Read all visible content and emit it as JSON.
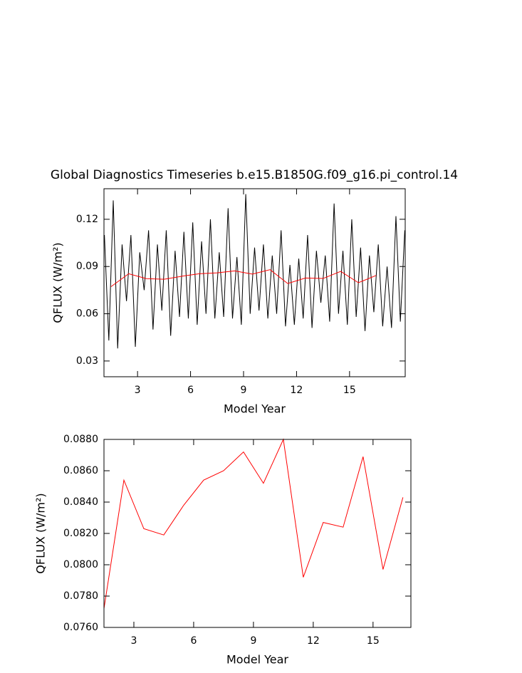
{
  "chart_data": [
    {
      "type": "line",
      "title": "Global Diagnostics Timeseries b.e15.B1850G.f09_g16.pi_control.14",
      "xlabel": "Model Year",
      "ylabel": "QFLUX (W/m²)",
      "xlim": [
        1.1,
        18.15
      ],
      "ylim": [
        0.02,
        0.1394
      ],
      "xticks": [
        3,
        6,
        9,
        12,
        15
      ],
      "yticks": [
        0.03,
        0.06,
        0.09,
        0.12
      ],
      "x": [
        1.125,
        1.375,
        1.625,
        1.875,
        2.125,
        2.375,
        2.625,
        2.875,
        3.125,
        3.375,
        3.625,
        3.875,
        4.125,
        4.375,
        4.625,
        4.875,
        5.125,
        5.375,
        5.625,
        5.875,
        6.125,
        6.375,
        6.625,
        6.875,
        7.125,
        7.375,
        7.625,
        7.875,
        8.125,
        8.375,
        8.625,
        8.875,
        9.125,
        9.375,
        9.625,
        9.875,
        10.125,
        10.375,
        10.625,
        10.875,
        11.125,
        11.375,
        11.625,
        11.875,
        12.125,
        12.375,
        12.625,
        12.875,
        13.125,
        13.375,
        13.625,
        13.875,
        14.125,
        14.375,
        14.625,
        14.875,
        15.125,
        15.375,
        15.625,
        15.875,
        16.125,
        16.375,
        16.625,
        16.875,
        17.125,
        17.375,
        17.625,
        17.875,
        18.125
      ],
      "series": [
        {
          "color": "#000000",
          "values": [
            0.11,
            0.043,
            0.132,
            0.038,
            0.104,
            0.068,
            0.11,
            0.039,
            0.099,
            0.075,
            0.113,
            0.05,
            0.104,
            0.062,
            0.113,
            0.046,
            0.1,
            0.058,
            0.112,
            0.057,
            0.118,
            0.053,
            0.106,
            0.06,
            0.12,
            0.057,
            0.099,
            0.058,
            0.127,
            0.057,
            0.096,
            0.053,
            0.136,
            0.06,
            0.102,
            0.062,
            0.104,
            0.057,
            0.097,
            0.06,
            0.113,
            0.052,
            0.091,
            0.053,
            0.095,
            0.057,
            0.11,
            0.051,
            0.1,
            0.067,
            0.097,
            0.055,
            0.13,
            0.06,
            0.1,
            0.053,
            0.12,
            0.058,
            0.102,
            0.049,
            0.097,
            0.061,
            0.104,
            0.052,
            0.09,
            0.051,
            0.122,
            0.055,
            0.113
          ]
        },
        {
          "color": "#ff0000",
          "x": [
            1.5,
            2.5,
            3.5,
            4.5,
            5.5,
            6.5,
            7.5,
            8.5,
            9.5,
            10.5,
            11.5,
            12.5,
            13.5,
            14.5,
            15.5,
            16.5
          ],
          "values": [
            0.0772,
            0.0854,
            0.0823,
            0.0819,
            0.0838,
            0.0854,
            0.086,
            0.0872,
            0.0852,
            0.088,
            0.0792,
            0.0827,
            0.0824,
            0.0869,
            0.0797,
            0.0843
          ]
        }
      ]
    },
    {
      "type": "line",
      "xlabel": "Model Year",
      "ylabel": "QFLUX (W/m²)",
      "xlim": [
        1.5,
        16.9
      ],
      "ylim": [
        0.076,
        0.088
      ],
      "xticks": [
        3,
        6,
        9,
        12,
        15
      ],
      "yticks": [
        {
          "value": 0.076,
          "label": "0.0760"
        },
        {
          "value": 0.078,
          "label": "0.0780"
        },
        {
          "value": 0.08,
          "label": "0.0800"
        },
        {
          "value": 0.082,
          "label": "0.0820"
        },
        {
          "value": 0.084,
          "label": "0.0840"
        },
        {
          "value": 0.086,
          "label": "0.0860"
        },
        {
          "value": 0.088,
          "label": "0.0880"
        }
      ],
      "x": [
        1.5,
        2.5,
        3.5,
        4.5,
        5.5,
        6.5,
        7.5,
        8.5,
        9.5,
        10.5,
        11.5,
        12.5,
        13.5,
        14.5,
        15.5,
        16.5
      ],
      "series": [
        {
          "color": "#ff0000",
          "values": [
            0.0772,
            0.0854,
            0.0823,
            0.0819,
            0.0838,
            0.0854,
            0.086,
            0.0872,
            0.0852,
            0.088,
            0.0792,
            0.0827,
            0.0824,
            0.0869,
            0.0797,
            0.0843
          ]
        }
      ]
    }
  ]
}
